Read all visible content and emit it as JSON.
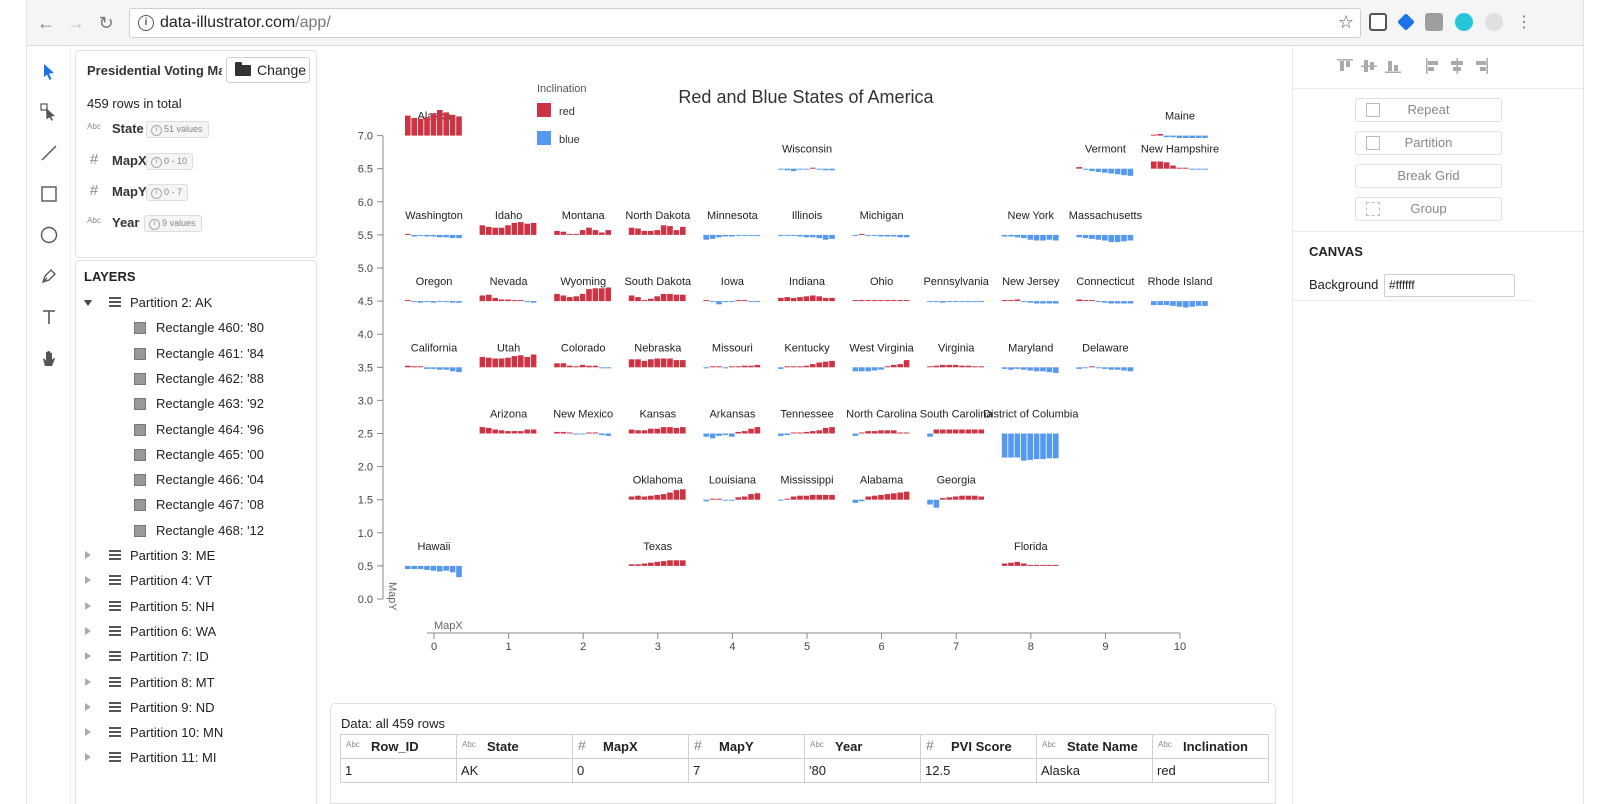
{
  "browser": {
    "url_host": "data-illustrator.com",
    "url_path": "/app/",
    "colors": {
      "ext1": "#1a73e8",
      "ext2": "#9e9e9e",
      "ext3": "#26c6da",
      "ext4": "#cccccc"
    }
  },
  "tools": [
    {
      "name": "select-tool-icon",
      "active": true
    },
    {
      "name": "direct-select-tool-icon"
    },
    {
      "name": "line-tool-icon"
    },
    {
      "name": "rectangle-tool-icon"
    },
    {
      "name": "circle-tool-icon"
    },
    {
      "name": "pen-tool-icon"
    },
    {
      "name": "text-tool-icon"
    },
    {
      "name": "hand-tool-icon"
    }
  ],
  "data_source": {
    "title": "Presidential Voting Ma",
    "change_label": "Change",
    "rows_total": "459 rows in total",
    "fields": [
      {
        "type": "Abc",
        "name": "State",
        "badge": "51 values"
      },
      {
        "type": "#",
        "name": "MapX",
        "badge": "0 - 10"
      },
      {
        "type": "#",
        "name": "MapY",
        "badge": "0 - 7"
      },
      {
        "type": "Abc",
        "name": "Year",
        "badge": "9 values"
      }
    ]
  },
  "layers": {
    "title": "LAYERS",
    "items": [
      {
        "label": "Partition 2: AK",
        "kind": "partition",
        "open": true
      },
      {
        "label": "Rectangle 460: '80",
        "kind": "rect"
      },
      {
        "label": "Rectangle 461: '84",
        "kind": "rect"
      },
      {
        "label": "Rectangle 462: '88",
        "kind": "rect"
      },
      {
        "label": "Rectangle 463: '92",
        "kind": "rect"
      },
      {
        "label": "Rectangle 464: '96",
        "kind": "rect"
      },
      {
        "label": "Rectangle 465: '00",
        "kind": "rect"
      },
      {
        "label": "Rectangle 466: '04",
        "kind": "rect"
      },
      {
        "label": "Rectangle 467: '08",
        "kind": "rect"
      },
      {
        "label": "Rectangle 468: '12",
        "kind": "rect"
      },
      {
        "label": "Partition 3: ME",
        "kind": "partition"
      },
      {
        "label": "Partition 4: VT",
        "kind": "partition"
      },
      {
        "label": "Partition 5: NH",
        "kind": "partition"
      },
      {
        "label": "Partition 6: WA",
        "kind": "partition"
      },
      {
        "label": "Partition 7: ID",
        "kind": "partition"
      },
      {
        "label": "Partition 8: MT",
        "kind": "partition"
      },
      {
        "label": "Partition 9: ND",
        "kind": "partition"
      },
      {
        "label": "Partition 10: MN",
        "kind": "partition"
      },
      {
        "label": "Partition 11: MI",
        "kind": "partition"
      }
    ]
  },
  "chart_data": {
    "type": "bar",
    "title": "Red and Blue States of America",
    "xlabel": "MapX",
    "ylabel": "MapY",
    "xlim": [
      0,
      10
    ],
    "ylim": [
      0,
      7
    ],
    "x_ticks": [
      "0",
      "1",
      "2",
      "3",
      "4",
      "5",
      "6",
      "7",
      "8",
      "9",
      "10"
    ],
    "y_ticks": [
      "0.0",
      "0.5",
      "1.0",
      "1.5",
      "2.0",
      "2.5",
      "3.0",
      "3.5",
      "4.0",
      "4.5",
      "5.0",
      "5.5",
      "6.0",
      "6.5",
      "7.0"
    ],
    "legend": {
      "title": "Inclination",
      "placement": "top-left",
      "items": [
        {
          "label": "red",
          "color": "#cc3344"
        },
        {
          "label": "blue",
          "color": "#5599ee"
        }
      ]
    },
    "colors": {
      "red": "#cc3344",
      "blue": "#5599ee"
    },
    "years": [
      "'80",
      "'84",
      "'88",
      "'92",
      "'96",
      "'00",
      "'04",
      "'08",
      "'12"
    ],
    "states": [
      {
        "name": "Alaska",
        "x": 0,
        "y": 7,
        "pvi": [
          12.5,
          11,
          10.5,
          11.5,
          14,
          16,
          14.5,
          13,
          12
        ]
      },
      {
        "name": "Maine",
        "x": 10,
        "y": 7,
        "pvi": [
          0.5,
          1,
          -1,
          -1,
          -1.5,
          -1.5,
          -1.5,
          -1.5,
          -1.5
        ]
      },
      {
        "name": "Wisconsin",
        "x": 5,
        "y": 6.5,
        "pvi": [
          -0.5,
          -1,
          -1.5,
          -0.5,
          -0.5,
          0.5,
          -0.5,
          -1,
          -1
        ]
      },
      {
        "name": "Vermont",
        "x": 9,
        "y": 6.5,
        "pvi": [
          1,
          -0.5,
          -1.5,
          -2,
          -2.5,
          -3,
          -3.5,
          -4,
          -4.5
        ]
      },
      {
        "name": "New Hampshire",
        "x": 10,
        "y": 6.5,
        "pvi": [
          4.5,
          4.5,
          4,
          2,
          0,
          0.5,
          -0.5,
          -0.5,
          -0.5
        ]
      },
      {
        "name": "Washington",
        "x": 0,
        "y": 5.5,
        "pvi": [
          0.5,
          -1,
          -0.5,
          -1,
          -1,
          -1.5,
          -1.5,
          -2,
          -2
        ]
      },
      {
        "name": "Idaho",
        "x": 1,
        "y": 5.5,
        "pvi": [
          6,
          5,
          4.5,
          4.5,
          6,
          7.5,
          8,
          7,
          7.5
        ]
      },
      {
        "name": "Montana",
        "x": 2,
        "y": 5.5,
        "pvi": [
          2.5,
          2,
          0,
          0.5,
          3,
          4.5,
          3,
          1.5,
          3
        ]
      },
      {
        "name": "North Dakota",
        "x": 3,
        "y": 5.5,
        "pvi": [
          4.5,
          4,
          2.5,
          2.5,
          3,
          6,
          5.5,
          3,
          5
        ]
      },
      {
        "name": "Minnesota",
        "x": 4,
        "y": 5.5,
        "pvi": [
          -3,
          -2.5,
          -1.5,
          -1,
          -1,
          -0.5,
          -0.5,
          -0.5,
          -0.5
        ]
      },
      {
        "name": "Illinois",
        "x": 5,
        "y": 5.5,
        "pvi": [
          -0.5,
          -0.5,
          -0.5,
          -1,
          -1.5,
          -1.5,
          -2,
          -3,
          -2.5
        ]
      },
      {
        "name": "Michigan",
        "x": 6,
        "y": 5.5,
        "pvi": [
          -0.5,
          0.5,
          -0.5,
          -0.5,
          -1,
          -1,
          -1,
          -1.5,
          -1.5
        ]
      },
      {
        "name": "New York",
        "x": 8,
        "y": 5.5,
        "pvi": [
          -1,
          -1,
          -1.5,
          -2,
          -3,
          -3.5,
          -3.5,
          -3,
          -3.5
        ]
      },
      {
        "name": "Massachusetts",
        "x": 9,
        "y": 5.5,
        "pvi": [
          -1.5,
          -2,
          -2.5,
          -3,
          -3.5,
          -4.5,
          -4.5,
          -4,
          -3.5
        ]
      },
      {
        "name": "Oregon",
        "x": 0,
        "y": 4.5,
        "pvi": [
          0.5,
          -0.5,
          -1,
          -0.5,
          -1,
          -0.5,
          -0.5,
          -1,
          -1
        ]
      },
      {
        "name": "Nevada",
        "x": 1,
        "y": 4.5,
        "pvi": [
          3.5,
          4,
          2,
          1,
          1,
          0.5,
          0.5,
          -0.5,
          -1
        ]
      },
      {
        "name": "Wyoming",
        "x": 2,
        "y": 4.5,
        "pvi": [
          4.5,
          3.5,
          2.5,
          3,
          4.5,
          7.5,
          8,
          8,
          8.5
        ]
      },
      {
        "name": "South Dakota",
        "x": 3,
        "y": 4.5,
        "pvi": [
          3.5,
          2.5,
          0.5,
          1.5,
          3,
          4.5,
          4.5,
          4,
          4
        ]
      },
      {
        "name": "Iowa",
        "x": 4,
        "y": 4.5,
        "pvi": [
          0.5,
          -0.5,
          -2,
          -0.5,
          -0.5,
          0,
          0,
          -0.5,
          -0.5
        ]
      },
      {
        "name": "Indiana",
        "x": 5,
        "y": 4.5,
        "pvi": [
          2,
          2.5,
          2,
          2.5,
          3,
          3.5,
          3,
          2,
          2
        ]
      },
      {
        "name": "Ohio",
        "x": 6,
        "y": 4.5,
        "pvi": [
          0,
          0.5,
          0.5,
          0.5,
          0,
          0.5,
          0.5,
          0,
          0
        ]
      },
      {
        "name": "Pennsylvania",
        "x": 7,
        "y": 4.5,
        "pvi": [
          -0.5,
          -0.5,
          -1,
          -0.5,
          -0.5,
          -0.5,
          -0.5,
          -0.5,
          -0.5
        ]
      },
      {
        "name": "New Jersey",
        "x": 8,
        "y": 4.5,
        "pvi": [
          0.5,
          0.5,
          1,
          -0.5,
          -1,
          -1.5,
          -1.5,
          -1.5,
          -1.5
        ]
      },
      {
        "name": "Connecticut",
        "x": 9,
        "y": 4.5,
        "pvi": [
          1,
          0.5,
          0.5,
          -0.5,
          -1,
          -1.5,
          -1.5,
          -1.5,
          -1.5
        ]
      },
      {
        "name": "Rhode Island",
        "x": 10,
        "y": 4.5,
        "pvi": [
          -2.5,
          -2.5,
          -2.5,
          -3,
          -3.5,
          -4,
          -3.5,
          -3,
          -3
        ]
      },
      {
        "name": "California",
        "x": 0,
        "y": 3.5,
        "pvi": [
          1,
          0.5,
          0.5,
          -1,
          -1,
          -1.5,
          -1.5,
          -2.5,
          -3
        ]
      },
      {
        "name": "Utah",
        "x": 1,
        "y": 3.5,
        "pvi": [
          6.5,
          6,
          5.5,
          5.5,
          6,
          7,
          7.5,
          6.5,
          8
        ]
      },
      {
        "name": "Colorado",
        "x": 2,
        "y": 3.5,
        "pvi": [
          2.5,
          2.5,
          1,
          0.5,
          1.5,
          1,
          1,
          -0.5,
          -0.5
        ]
      },
      {
        "name": "Nebraska",
        "x": 3,
        "y": 3.5,
        "pvi": [
          5,
          5,
          4,
          5,
          5.5,
          5.5,
          5.5,
          4.5,
          4.5
        ]
      },
      {
        "name": "Missouri",
        "x": 4,
        "y": 3.5,
        "pvi": [
          -0.5,
          0.5,
          0.5,
          -0.5,
          0.5,
          0.5,
          1,
          1,
          1.5
        ]
      },
      {
        "name": "Kentucky",
        "x": 5,
        "y": 3.5,
        "pvi": [
          -1,
          0.5,
          0.5,
          0.5,
          1,
          2,
          3,
          3.5,
          4
        ]
      },
      {
        "name": "West Virginia",
        "x": 6,
        "y": 3.5,
        "pvi": [
          -2.5,
          -2.5,
          -2.5,
          -2,
          -1.5,
          0.5,
          1.5,
          2,
          4.5
        ]
      },
      {
        "name": "Virginia",
        "x": 7,
        "y": 3.5,
        "pvi": [
          0.5,
          1,
          1.5,
          1.5,
          1.5,
          1,
          1,
          0.5,
          0.5
        ]
      },
      {
        "name": "Maryland",
        "x": 8,
        "y": 3.5,
        "pvi": [
          -1,
          -1.5,
          -1,
          -1.5,
          -2,
          -2.5,
          -2.5,
          -3,
          -3.5
        ]
      },
      {
        "name": "Delaware",
        "x": 9,
        "y": 3.5,
        "pvi": [
          -1,
          -0.5,
          0.5,
          -0.5,
          -1,
          -1.5,
          -1.5,
          -2,
          -2.5
        ]
      },
      {
        "name": "Arizona",
        "x": 1,
        "y": 2.5,
        "pvi": [
          4,
          3.5,
          2.5,
          2,
          1.5,
          1.5,
          1.5,
          2.5,
          2.5
        ]
      },
      {
        "name": "New Mexico",
        "x": 2,
        "y": 2.5,
        "pvi": [
          1,
          1,
          0.5,
          -0.5,
          -0.5,
          0,
          0,
          -1,
          -1.5
        ]
      },
      {
        "name": "Kansas",
        "x": 3,
        "y": 2.5,
        "pvi": [
          2.5,
          2,
          2,
          3,
          3,
          4,
          4,
          3.5,
          4
        ]
      },
      {
        "name": "Arkansas",
        "x": 4,
        "y": 2.5,
        "pvi": [
          -2,
          -3,
          -1.5,
          -1,
          -2,
          1,
          1.5,
          3,
          4
        ]
      },
      {
        "name": "Tennessee",
        "x": 5,
        "y": 2.5,
        "pvi": [
          -1.5,
          -1,
          0.5,
          0.5,
          1,
          1.5,
          2,
          3.5,
          4
        ]
      },
      {
        "name": "North Carolina",
        "x": 6,
        "y": 2.5,
        "pvi": [
          -1.5,
          0.5,
          1.5,
          1.5,
          2,
          2,
          2,
          0.5,
          0.5
        ]
      },
      {
        "name": "South Carolina",
        "x": 7,
        "y": 2.5,
        "pvi": [
          -2,
          2.5,
          2.5,
          2.5,
          2.5,
          2.5,
          2.5,
          2.5,
          2.5
        ]
      },
      {
        "name": "District of Columbia",
        "x": 8,
        "y": 2.5,
        "pvi": [
          -15,
          -15,
          -15,
          -17,
          -16.5,
          -16,
          -16,
          -15.5,
          -15.5
        ]
      },
      {
        "name": "Oklahoma",
        "x": 3,
        "y": 1.5,
        "pvi": [
          2,
          2.5,
          2,
          2.5,
          3,
          3.5,
          4.5,
          6,
          6.5
        ]
      },
      {
        "name": "Louisiana",
        "x": 4,
        "y": 1.5,
        "pvi": [
          -1,
          0.5,
          0.5,
          -0.5,
          -0.5,
          1.5,
          2,
          3.5,
          4
        ]
      },
      {
        "name": "Mississippi",
        "x": 5,
        "y": 1.5,
        "pvi": [
          -0.5,
          0.5,
          2,
          2.5,
          2.5,
          3,
          3,
          3,
          3
        ]
      },
      {
        "name": "Alabama",
        "x": 6,
        "y": 1.5,
        "pvi": [
          -2,
          -1,
          2,
          2.5,
          3,
          3.5,
          4,
          4.5,
          5
        ]
      },
      {
        "name": "Georgia",
        "x": 7,
        "y": 1.5,
        "pvi": [
          -3,
          -5,
          1,
          1.5,
          2,
          2.5,
          2.5,
          2.5,
          2
        ]
      },
      {
        "name": "Hawaii",
        "x": 0,
        "y": 0.5,
        "pvi": [
          -2,
          -2,
          -2,
          -2.5,
          -3,
          -3.5,
          -3,
          -4,
          -7
        ]
      },
      {
        "name": "Texas",
        "x": 3,
        "y": 0.5,
        "pvi": [
          1,
          1,
          1.5,
          2,
          2.5,
          3,
          3.5,
          3.5,
          3.5
        ]
      },
      {
        "name": "Florida",
        "x": 8,
        "y": 0.5,
        "pvi": [
          1.5,
          2,
          2.5,
          1.5,
          0.5,
          0.5,
          0.5,
          0.5,
          0.5
        ]
      }
    ]
  },
  "data_table": {
    "title": "Data: all 459 rows",
    "columns": [
      {
        "type": "Abc",
        "name": "Row_ID"
      },
      {
        "type": "Abc",
        "name": "State"
      },
      {
        "type": "#",
        "name": "MapX"
      },
      {
        "type": "#",
        "name": "MapY"
      },
      {
        "type": "Abc",
        "name": "Year"
      },
      {
        "type": "#",
        "name": "PVI Score"
      },
      {
        "type": "Abc",
        "name": "State Name"
      },
      {
        "type": "Abc",
        "name": "Inclination"
      }
    ],
    "rows": [
      [
        "1",
        "AK",
        "0",
        "7",
        "'80",
        "12.5",
        "Alaska",
        "red"
      ]
    ]
  },
  "right_panel": {
    "buttons": [
      "Repeat",
      "Partition",
      "Break Grid",
      "Group"
    ],
    "canvas_title": "CANVAS",
    "background_label": "Background",
    "background_value": "#ffffff"
  }
}
